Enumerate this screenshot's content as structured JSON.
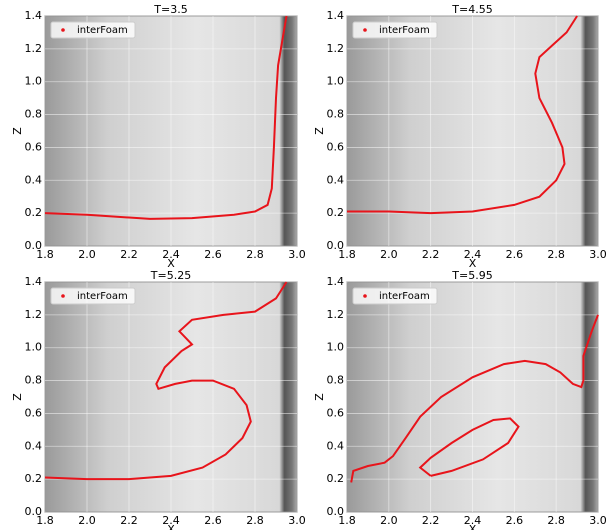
{
  "chart_data": [
    {
      "type": "line",
      "title": "T=3.5",
      "xlabel": "X",
      "ylabel": "Z",
      "xlim": [
        1.8,
        3.0
      ],
      "ylim": [
        0,
        1.4
      ],
      "xticks": [
        1.8,
        {
          "value": 2,
          "label": "2.0"
        },
        2.2,
        2.4,
        2.6,
        2.8,
        {
          "value": 3,
          "label": "3.0"
        }
      ],
      "yticks": [
        {
          "value": 0,
          "label": "0.0"
        },
        0.2,
        0.4,
        0.6,
        0.8,
        {
          "value": 1,
          "label": "1.0"
        },
        1.2,
        1.4
      ],
      "grid": true,
      "legend": "upper left",
      "x": [
        1.8,
        2.0,
        2.3,
        2.5,
        2.7,
        2.8,
        2.86,
        2.88,
        2.89,
        2.9,
        2.91,
        2.93,
        2.95
      ],
      "series": [
        {
          "name": "interFoam",
          "color": "#e8141b",
          "values": [
            0.2,
            0.19,
            0.165,
            0.17,
            0.19,
            0.21,
            0.25,
            0.35,
            0.6,
            0.9,
            1.1,
            1.25,
            1.4
          ]
        }
      ]
    },
    {
      "type": "line",
      "title": "T=4.55",
      "xlabel": "X",
      "ylabel": "Z",
      "xlim": [
        1.8,
        3.0
      ],
      "ylim": [
        0,
        1.4
      ],
      "xticks": [
        1.8,
        {
          "value": 2,
          "label": "2.0"
        },
        2.2,
        2.4,
        2.6,
        2.8,
        {
          "value": 3,
          "label": "3.0"
        }
      ],
      "yticks": [
        {
          "value": 0,
          "label": "0.0"
        },
        0.2,
        0.4,
        0.6,
        0.8,
        {
          "value": 1,
          "label": "1.0"
        },
        1.2,
        1.4
      ],
      "grid": true,
      "legend": "upper left",
      "x": [
        1.8,
        2.0,
        2.2,
        2.4,
        2.6,
        2.72,
        2.8,
        2.84,
        2.83,
        2.78,
        2.72,
        2.7,
        2.72,
        2.78,
        2.85,
        2.9
      ],
      "series": [
        {
          "name": "interFoam",
          "color": "#e8141b",
          "values": [
            0.21,
            0.21,
            0.2,
            0.21,
            0.25,
            0.3,
            0.4,
            0.5,
            0.6,
            0.75,
            0.9,
            1.05,
            1.15,
            1.22,
            1.3,
            1.4
          ]
        }
      ]
    },
    {
      "type": "line",
      "title": "T=5.25",
      "xlabel": "X",
      "ylabel": "Z",
      "xlim": [
        1.8,
        3.0
      ],
      "ylim": [
        0,
        1.4
      ],
      "xticks": [
        1.8,
        {
          "value": 2,
          "label": "2.0"
        },
        2.2,
        2.4,
        2.6,
        2.8,
        {
          "value": 3,
          "label": "3.0"
        }
      ],
      "yticks": [
        {
          "value": 0,
          "label": "0.0"
        },
        0.2,
        0.4,
        0.6,
        0.8,
        {
          "value": 1,
          "label": "1.0"
        },
        1.2,
        1.4
      ],
      "grid": true,
      "legend": "upper left",
      "x": [
        1.8,
        2.0,
        2.2,
        2.4,
        2.55,
        2.66,
        2.74,
        2.78,
        2.76,
        2.7,
        2.6,
        2.5,
        2.42,
        2.34,
        2.33,
        2.37,
        2.45,
        2.5,
        2.44,
        2.5,
        2.65,
        2.8,
        2.9,
        2.95
      ],
      "series": [
        {
          "name": "interFoam",
          "color": "#e8141b",
          "values": [
            0.21,
            0.2,
            0.2,
            0.22,
            0.27,
            0.35,
            0.45,
            0.55,
            0.65,
            0.75,
            0.8,
            0.8,
            0.78,
            0.75,
            0.78,
            0.88,
            0.98,
            1.02,
            1.1,
            1.17,
            1.2,
            1.22,
            1.3,
            1.4
          ]
        }
      ]
    },
    {
      "type": "line",
      "title": "T=5.95",
      "xlabel": "X",
      "ylabel": "Z",
      "xlim": [
        1.8,
        3.0
      ],
      "ylim": [
        0,
        1.4
      ],
      "xticks": [
        1.8,
        {
          "value": 2,
          "label": "2.0"
        },
        2.2,
        2.4,
        2.6,
        2.8,
        {
          "value": 3,
          "label": "3.0"
        }
      ],
      "yticks": [
        {
          "value": 0,
          "label": "0.0"
        },
        0.2,
        0.4,
        0.6,
        0.8,
        {
          "value": 1,
          "label": "1.0"
        },
        1.2,
        1.4
      ],
      "grid": true,
      "legend": "upper left",
      "x": [
        1.82,
        1.83,
        1.9,
        1.98,
        2.02,
        2.08,
        2.15,
        2.25,
        2.4,
        2.55,
        2.65,
        2.75,
        2.82,
        2.88,
        2.92,
        2.93,
        2.93,
        2.97,
        3.0,
        null,
        2.2,
        2.15,
        2.2,
        2.3,
        2.4,
        2.5,
        2.58,
        2.62,
        2.57,
        2.45,
        2.3,
        2.2
      ],
      "series": [
        {
          "name": "interFoam",
          "color": "#e8141b",
          "values": [
            0.18,
            0.25,
            0.28,
            0.3,
            0.34,
            0.45,
            0.58,
            0.7,
            0.82,
            0.9,
            0.92,
            0.9,
            0.85,
            0.78,
            0.76,
            0.8,
            0.95,
            1.1,
            1.2,
            null,
            0.22,
            0.27,
            0.33,
            0.42,
            0.5,
            0.56,
            0.57,
            0.52,
            0.42,
            0.32,
            0.25,
            0.22
          ]
        }
      ]
    }
  ]
}
